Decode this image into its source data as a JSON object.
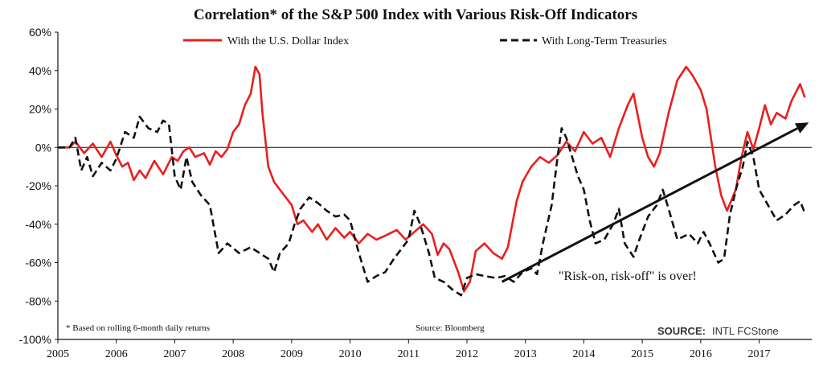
{
  "chart_data": {
    "type": "line",
    "title": "Correlation* of the S&P 500 Index with Various Risk-Off Indicators",
    "xlabel": "",
    "ylabel": "",
    "xlim": [
      2005,
      2017.9
    ],
    "ylim": [
      -100,
      60
    ],
    "x_ticks": [
      "2005",
      "2006",
      "2007",
      "2008",
      "2009",
      "2010",
      "2011",
      "2012",
      "2013",
      "2014",
      "2015",
      "2016",
      "2017"
    ],
    "y_ticks": [
      "60%",
      "40%",
      "20%",
      "0%",
      "-20%",
      "-40%",
      "-60%",
      "-80%",
      "-100%"
    ],
    "legend_position": "top",
    "series": [
      {
        "name": "With the U.S. Dollar Index",
        "color": "#e8201e",
        "style": "solid",
        "points": [
          [
            2005.0,
            0
          ],
          [
            2005.2,
            0
          ],
          [
            2005.3,
            3
          ],
          [
            2005.45,
            -3
          ],
          [
            2005.6,
            2
          ],
          [
            2005.75,
            -5
          ],
          [
            2005.9,
            3
          ],
          [
            2006.0,
            -4
          ],
          [
            2006.1,
            -10
          ],
          [
            2006.2,
            -8
          ],
          [
            2006.3,
            -17
          ],
          [
            2006.4,
            -12
          ],
          [
            2006.5,
            -16
          ],
          [
            2006.65,
            -7
          ],
          [
            2006.8,
            -14
          ],
          [
            2006.95,
            -5
          ],
          [
            2007.05,
            -7
          ],
          [
            2007.15,
            -2
          ],
          [
            2007.25,
            0
          ],
          [
            2007.35,
            -5
          ],
          [
            2007.5,
            -3
          ],
          [
            2007.6,
            -9
          ],
          [
            2007.7,
            -2
          ],
          [
            2007.8,
            -5
          ],
          [
            2007.9,
            -1
          ],
          [
            2008.0,
            8
          ],
          [
            2008.1,
            12
          ],
          [
            2008.2,
            22
          ],
          [
            2008.3,
            28
          ],
          [
            2008.38,
            42
          ],
          [
            2008.45,
            38
          ],
          [
            2008.5,
            18
          ],
          [
            2008.6,
            -10
          ],
          [
            2008.7,
            -18
          ],
          [
            2008.85,
            -24
          ],
          [
            2009.0,
            -30
          ],
          [
            2009.1,
            -40
          ],
          [
            2009.2,
            -38
          ],
          [
            2009.35,
            -44
          ],
          [
            2009.45,
            -40
          ],
          [
            2009.6,
            -48
          ],
          [
            2009.75,
            -42
          ],
          [
            2009.9,
            -47
          ],
          [
            2010.0,
            -44
          ],
          [
            2010.15,
            -50
          ],
          [
            2010.3,
            -45
          ],
          [
            2010.45,
            -48
          ],
          [
            2010.6,
            -46
          ],
          [
            2010.8,
            -43
          ],
          [
            2010.95,
            -48
          ],
          [
            2011.1,
            -44
          ],
          [
            2011.25,
            -40
          ],
          [
            2011.4,
            -45
          ],
          [
            2011.5,
            -56
          ],
          [
            2011.6,
            -50
          ],
          [
            2011.7,
            -53
          ],
          [
            2011.85,
            -65
          ],
          [
            2011.95,
            -75
          ],
          [
            2012.05,
            -70
          ],
          [
            2012.15,
            -54
          ],
          [
            2012.3,
            -50
          ],
          [
            2012.45,
            -55
          ],
          [
            2012.6,
            -58
          ],
          [
            2012.7,
            -52
          ],
          [
            2012.85,
            -28
          ],
          [
            2012.95,
            -18
          ],
          [
            2013.1,
            -10
          ],
          [
            2013.25,
            -5
          ],
          [
            2013.4,
            -8
          ],
          [
            2013.55,
            -4
          ],
          [
            2013.7,
            3
          ],
          [
            2013.85,
            -2
          ],
          [
            2014.0,
            8
          ],
          [
            2014.15,
            2
          ],
          [
            2014.3,
            5
          ],
          [
            2014.45,
            -5
          ],
          [
            2014.6,
            10
          ],
          [
            2014.75,
            22
          ],
          [
            2014.85,
            28
          ],
          [
            2014.9,
            20
          ],
          [
            2015.0,
            5
          ],
          [
            2015.1,
            -5
          ],
          [
            2015.2,
            -10
          ],
          [
            2015.3,
            -3
          ],
          [
            2015.45,
            18
          ],
          [
            2015.6,
            35
          ],
          [
            2015.75,
            42
          ],
          [
            2015.85,
            38
          ],
          [
            2016.0,
            30
          ],
          [
            2016.1,
            20
          ],
          [
            2016.25,
            -10
          ],
          [
            2016.35,
            -25
          ],
          [
            2016.45,
            -33
          ],
          [
            2016.6,
            -22
          ],
          [
            2016.7,
            -5
          ],
          [
            2016.8,
            8
          ],
          [
            2016.9,
            -1
          ],
          [
            2017.0,
            10
          ],
          [
            2017.1,
            22
          ],
          [
            2017.2,
            12
          ],
          [
            2017.3,
            18
          ],
          [
            2017.45,
            15
          ],
          [
            2017.55,
            24
          ],
          [
            2017.7,
            33
          ],
          [
            2017.78,
            26
          ]
        ]
      },
      {
        "name": "With Long-Term Treasuries",
        "color": "#111111",
        "style": "dashed",
        "points": [
          [
            2005.0,
            0
          ],
          [
            2005.2,
            0
          ],
          [
            2005.3,
            5
          ],
          [
            2005.4,
            -12
          ],
          [
            2005.5,
            -5
          ],
          [
            2005.6,
            -15
          ],
          [
            2005.75,
            -8
          ],
          [
            2005.9,
            -12
          ],
          [
            2006.0,
            -6
          ],
          [
            2006.15,
            8
          ],
          [
            2006.3,
            5
          ],
          [
            2006.4,
            16
          ],
          [
            2006.55,
            10
          ],
          [
            2006.7,
            8
          ],
          [
            2006.8,
            14
          ],
          [
            2006.9,
            12
          ],
          [
            2007.0,
            -15
          ],
          [
            2007.1,
            -22
          ],
          [
            2007.2,
            -5
          ],
          [
            2007.3,
            -18
          ],
          [
            2007.45,
            -25
          ],
          [
            2007.6,
            -30
          ],
          [
            2007.75,
            -55
          ],
          [
            2007.9,
            -50
          ],
          [
            2008.1,
            -55
          ],
          [
            2008.3,
            -52
          ],
          [
            2008.45,
            -55
          ],
          [
            2008.6,
            -58
          ],
          [
            2008.7,
            -65
          ],
          [
            2008.8,
            -55
          ],
          [
            2008.95,
            -50
          ],
          [
            2009.05,
            -40
          ],
          [
            2009.15,
            -32
          ],
          [
            2009.3,
            -26
          ],
          [
            2009.45,
            -29
          ],
          [
            2009.6,
            -33
          ],
          [
            2009.75,
            -36
          ],
          [
            2009.9,
            -35
          ],
          [
            2010.0,
            -38
          ],
          [
            2010.15,
            -55
          ],
          [
            2010.3,
            -70
          ],
          [
            2010.45,
            -67
          ],
          [
            2010.6,
            -65
          ],
          [
            2010.75,
            -58
          ],
          [
            2010.9,
            -52
          ],
          [
            2011.0,
            -48
          ],
          [
            2011.1,
            -33
          ],
          [
            2011.2,
            -40
          ],
          [
            2011.35,
            -55
          ],
          [
            2011.45,
            -68
          ],
          [
            2011.6,
            -70
          ],
          [
            2011.75,
            -74
          ],
          [
            2011.9,
            -77
          ],
          [
            2012.0,
            -68
          ],
          [
            2012.15,
            -66
          ],
          [
            2012.3,
            -67
          ],
          [
            2012.5,
            -68
          ],
          [
            2012.65,
            -67
          ],
          [
            2012.8,
            -70
          ],
          [
            2012.95,
            -65
          ],
          [
            2013.1,
            -63
          ],
          [
            2013.2,
            -66
          ],
          [
            2013.3,
            -50
          ],
          [
            2013.45,
            -30
          ],
          [
            2013.55,
            -5
          ],
          [
            2013.62,
            10
          ],
          [
            2013.7,
            5
          ],
          [
            2013.8,
            -5
          ],
          [
            2013.9,
            -15
          ],
          [
            2014.0,
            -22
          ],
          [
            2014.1,
            -38
          ],
          [
            2014.2,
            -50
          ],
          [
            2014.35,
            -48
          ],
          [
            2014.5,
            -40
          ],
          [
            2014.6,
            -32
          ],
          [
            2014.7,
            -50
          ],
          [
            2014.85,
            -57
          ],
          [
            2014.95,
            -48
          ],
          [
            2015.1,
            -36
          ],
          [
            2015.25,
            -30
          ],
          [
            2015.35,
            -22
          ],
          [
            2015.45,
            -32
          ],
          [
            2015.6,
            -48
          ],
          [
            2015.8,
            -45
          ],
          [
            2015.95,
            -50
          ],
          [
            2016.05,
            -44
          ],
          [
            2016.15,
            -50
          ],
          [
            2016.3,
            -60
          ],
          [
            2016.4,
            -58
          ],
          [
            2016.5,
            -35
          ],
          [
            2016.62,
            -20
          ],
          [
            2016.72,
            -10
          ],
          [
            2016.8,
            3
          ],
          [
            2016.9,
            -5
          ],
          [
            2017.0,
            -22
          ],
          [
            2017.15,
            -30
          ],
          [
            2017.3,
            -38
          ],
          [
            2017.45,
            -35
          ],
          [
            2017.6,
            -30
          ],
          [
            2017.7,
            -28
          ],
          [
            2017.78,
            -34
          ]
        ]
      }
    ],
    "annotations": [
      {
        "text": "\"Risk-on, risk-off\" is over!"
      },
      {
        "text": "* Based on rolling 6-month daily returns"
      },
      {
        "text": "Source: Bloomberg"
      }
    ],
    "arrow": {
      "from": [
        2012.6,
        -70
      ],
      "to": [
        2017.85,
        13
      ]
    }
  },
  "footer": {
    "source_label": "SOURCE:",
    "source_value": "INTL FCStone"
  }
}
